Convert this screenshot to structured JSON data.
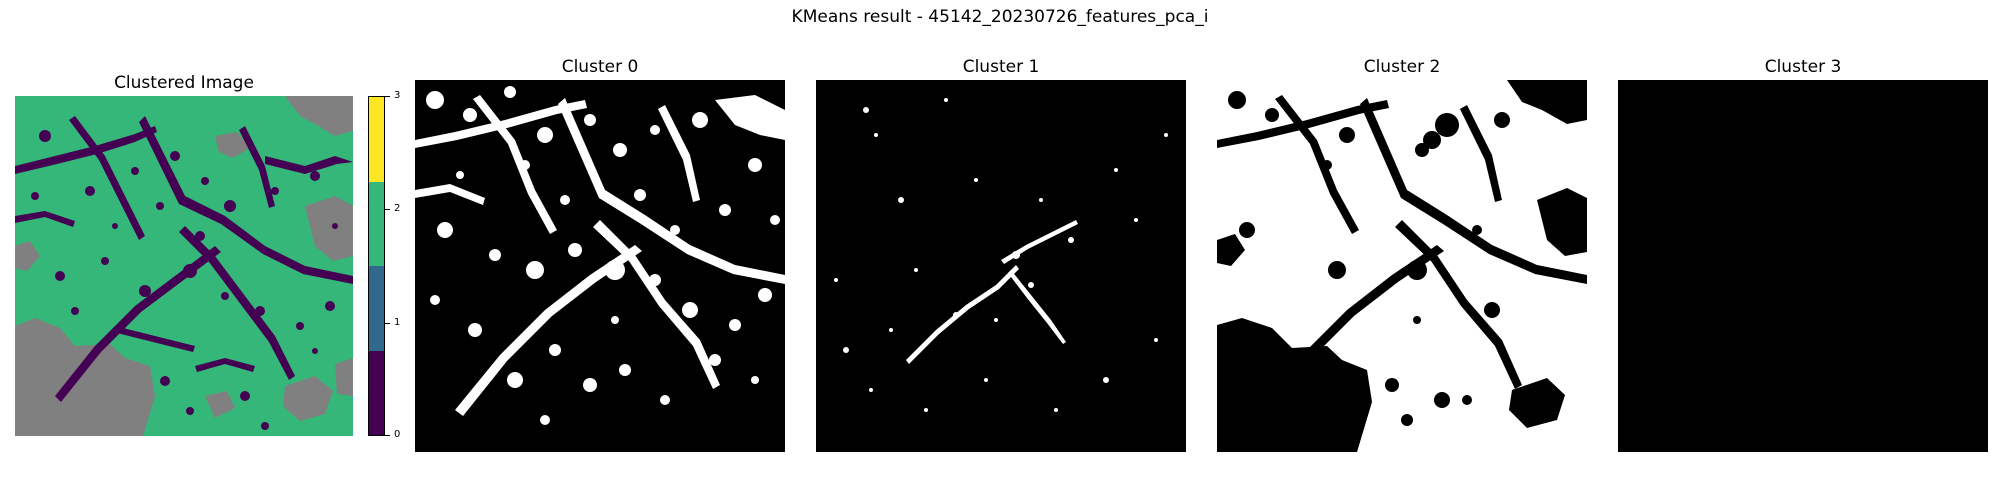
{
  "figure": {
    "title": "KMeans result - 45142_20230726_features_pca_i"
  },
  "panels": [
    {
      "title": "Clustered Image"
    },
    {
      "title": "Cluster 0"
    },
    {
      "title": "Cluster 1"
    },
    {
      "title": "Cluster 2"
    },
    {
      "title": "Cluster 3"
    }
  ],
  "colorbar": {
    "ticks": [
      "3",
      "2",
      "1",
      "0"
    ],
    "colors": {
      "cluster_3": "#fde725",
      "cluster_2": "#35b779",
      "cluster_1": "#31688e",
      "cluster_0": "#440154"
    }
  },
  "colors": {
    "nodata": "#808080",
    "mask_on": "#ffffff",
    "mask_off": "#000000"
  }
}
